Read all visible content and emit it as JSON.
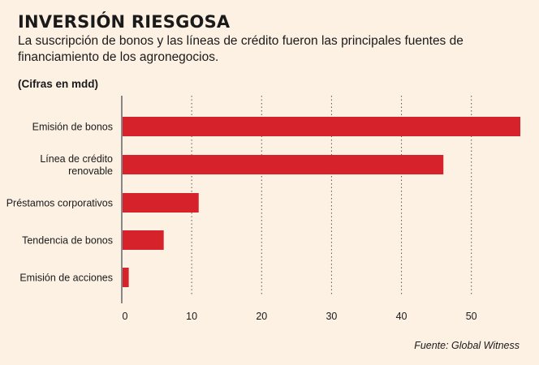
{
  "header": {
    "title": "INVERSIÓN RIESGOSA",
    "subtitle": "La suscripción de bonos y las líneas de crédito fueron las principales fuentes de financiamiento de los agronegocios.",
    "units": "(Cifras en mdd)"
  },
  "footer": {
    "source": "Fuente: Global Witness"
  },
  "chart_data": {
    "type": "bar",
    "orientation": "horizontal",
    "categories": [
      [
        "Emisión de bonos"
      ],
      [
        "Línea de crédito",
        "renovable"
      ],
      [
        "Préstamos corporativos"
      ],
      [
        "Tendencia de bonos"
      ],
      [
        "Emisión de acciones"
      ]
    ],
    "values": [
      57,
      46,
      11,
      6,
      1
    ],
    "xticks": [
      0,
      10,
      20,
      30,
      40,
      50
    ],
    "xlim": [
      0,
      57
    ],
    "grid": "vertical-dotted",
    "bar_color": "#d6222b",
    "axis_color": "#888888"
  }
}
